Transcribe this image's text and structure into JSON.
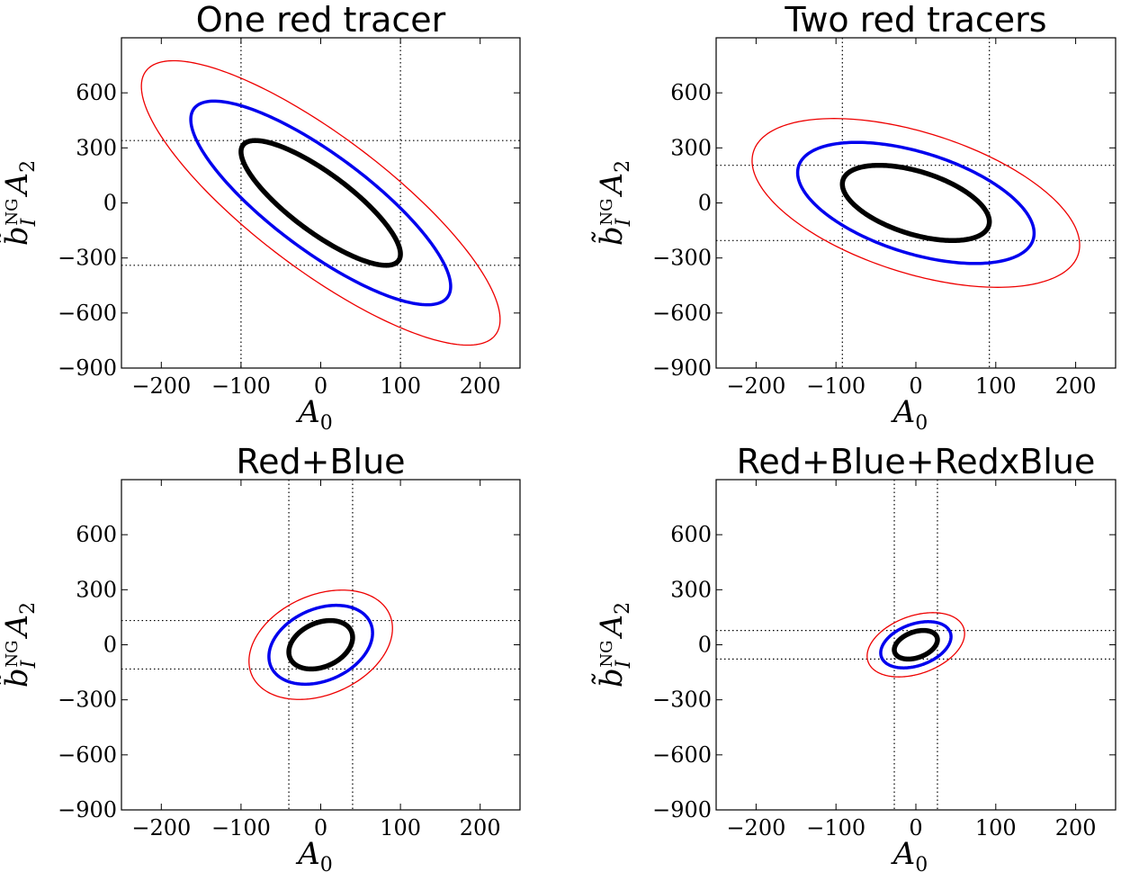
{
  "chart_data": [
    {
      "type": "contour",
      "title": "One red tracer",
      "xlabel": "A_0",
      "ylabel": "b̃_I^NG A_2",
      "xlim": [
        -250,
        250
      ],
      "ylim": [
        -900,
        900
      ],
      "xticks": [
        -200,
        -100,
        0,
        100,
        200
      ],
      "yticks": [
        -900,
        -600,
        -300,
        0,
        300,
        600
      ],
      "grid": false,
      "marginal_bounds": {
        "x": 100,
        "y": 340
      },
      "ellipses": [
        {
          "color": "#000000",
          "level": "inner",
          "x_half_range": 100,
          "y_half_range": 340,
          "rho": -0.82
        },
        {
          "color": "#0000ee",
          "level": "middle",
          "x_half_range": 163,
          "y_half_range": 555,
          "rho": -0.82
        },
        {
          "color": "#ee0000",
          "level": "outer",
          "x_half_range": 225,
          "y_half_range": 775,
          "rho": -0.82
        }
      ]
    },
    {
      "type": "contour",
      "title": "Two red tracers",
      "xlabel": "A_0",
      "ylabel": "b̃_I^NG A_2",
      "xlim": [
        -250,
        250
      ],
      "ylim": [
        -900,
        900
      ],
      "xticks": [
        -200,
        -100,
        0,
        100,
        200
      ],
      "yticks": [
        -900,
        -600,
        -300,
        0,
        300,
        600
      ],
      "grid": false,
      "marginal_bounds": {
        "x": 92,
        "y": 205
      },
      "ellipses": [
        {
          "color": "#000000",
          "level": "inner",
          "x_half_range": 92,
          "y_half_range": 205,
          "rho": -0.5
        },
        {
          "color": "#0000ee",
          "level": "middle",
          "x_half_range": 148,
          "y_half_range": 330,
          "rho": -0.5
        },
        {
          "color": "#ee0000",
          "level": "outer",
          "x_half_range": 205,
          "y_half_range": 460,
          "rho": -0.5
        }
      ]
    },
    {
      "type": "contour",
      "title": "Red+Blue",
      "xlabel": "A_0",
      "ylabel": "b̃_I^NG A_2",
      "xlim": [
        -250,
        250
      ],
      "ylim": [
        -900,
        900
      ],
      "xticks": [
        -200,
        -100,
        0,
        100,
        200
      ],
      "yticks": [
        -900,
        -600,
        -300,
        0,
        300,
        600
      ],
      "grid": false,
      "marginal_bounds": {
        "x": 40,
        "y": 132
      },
      "ellipses": [
        {
          "color": "#000000",
          "level": "inner",
          "x_half_range": 40,
          "y_half_range": 132,
          "rho": 0.3
        },
        {
          "color": "#0000ee",
          "level": "middle",
          "x_half_range": 65,
          "y_half_range": 215,
          "rho": 0.3
        },
        {
          "color": "#ee0000",
          "level": "outer",
          "x_half_range": 90,
          "y_half_range": 298,
          "rho": 0.3
        }
      ]
    },
    {
      "type": "contour",
      "title": "Red+Blue+RedxBlue",
      "xlabel": "A_0",
      "ylabel": "b̃_I^NG A_2",
      "xlim": [
        -250,
        250
      ],
      "ylim": [
        -900,
        900
      ],
      "xticks": [
        -200,
        -100,
        0,
        100,
        200
      ],
      "yticks": [
        -900,
        -600,
        -300,
        0,
        300,
        600
      ],
      "grid": false,
      "marginal_bounds": {
        "x": 27,
        "y": 78
      },
      "ellipses": [
        {
          "color": "#000000",
          "level": "inner",
          "x_half_range": 27,
          "y_half_range": 78,
          "rho": 0.35
        },
        {
          "color": "#0000ee",
          "level": "middle",
          "x_half_range": 44,
          "y_half_range": 126,
          "rho": 0.35
        },
        {
          "color": "#ee0000",
          "level": "outer",
          "x_half_range": 61,
          "y_half_range": 175,
          "rho": 0.35
        }
      ]
    }
  ]
}
